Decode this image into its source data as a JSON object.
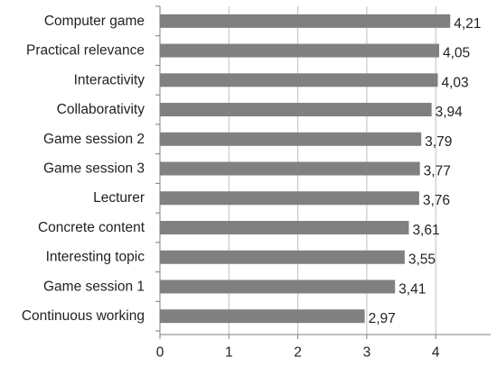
{
  "chart_data": {
    "type": "bar",
    "orientation": "horizontal",
    "categories": [
      "Computer game",
      "Practical relevance",
      "Interactivity",
      "Collaborativity",
      "Game session 2",
      "Game session 3",
      "Lecturer",
      "Concrete content",
      "Interesting topic",
      "Game session 1",
      "Continuous working"
    ],
    "values": [
      4.21,
      4.05,
      4.03,
      3.94,
      3.79,
      3.77,
      3.76,
      3.61,
      3.55,
      3.41,
      2.97
    ],
    "value_labels": [
      "4,21",
      "4,05",
      "4,03",
      "3,94",
      "3,79",
      "3,77",
      "3,76",
      "3,61",
      "3,55",
      "3,41",
      "2,97"
    ],
    "x_ticks": [
      0,
      1,
      2,
      3,
      4
    ],
    "x_tick_labels": [
      "0",
      "1",
      "2",
      "3",
      "4"
    ],
    "xlim": [
      0,
      4.8
    ],
    "title": "",
    "xlabel": "",
    "ylabel": "",
    "grid": "vertical",
    "legend": "none",
    "bar_color": "#808080",
    "grid_color": "#bfbfbf",
    "axis_color": "#7f7f7f"
  }
}
